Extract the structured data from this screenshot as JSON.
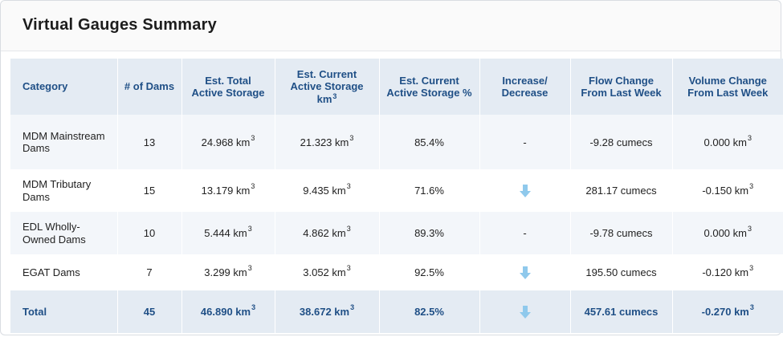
{
  "title": "Virtual Gauges Summary",
  "headers": {
    "category": "Category",
    "dams": "# of Dams",
    "total_storage": "Est. Total Active Storage",
    "current_storage": "Est. Current Active Storage km",
    "current_storage_sup": "3",
    "current_pct": "Est. Current Active Storage %",
    "trend": "Increase/ Decrease",
    "flow_change": "Flow Change From Last Week",
    "volume_change": "Volume Change From Last Week"
  },
  "unit_sup": "3",
  "colors": {
    "header_bg": "#e4ebf3",
    "header_text": "#1f4f86",
    "arrow": "#8fc9ec"
  },
  "rows": [
    {
      "category": "MDM Mainstream Dams",
      "dams": "13",
      "total": "24.968 km",
      "current": "21.323 km",
      "pct": "85.4%",
      "trend": "-",
      "trend_icon": "none",
      "flow": "-9.28 cumecs",
      "volume": "0.000 km"
    },
    {
      "category": "MDM Tributary Dams",
      "dams": "15",
      "total": "13.179 km",
      "current": "9.435 km",
      "pct": "71.6%",
      "trend": "",
      "trend_icon": "arrow-down-icon",
      "flow": "281.17 cumecs",
      "volume": "-0.150 km"
    },
    {
      "category": "EDL Wholly-Owned Dams",
      "dams": "10",
      "total": "5.444 km",
      "current": "4.862 km",
      "pct": "89.3%",
      "trend": "-",
      "trend_icon": "none",
      "flow": "-9.78 cumecs",
      "volume": "0.000 km"
    },
    {
      "category": "EGAT Dams",
      "dams": "7",
      "total": "3.299 km",
      "current": "3.052 km",
      "pct": "92.5%",
      "trend": "",
      "trend_icon": "arrow-down-icon",
      "flow": "195.50 cumecs",
      "volume": "-0.120 km"
    }
  ],
  "total": {
    "category": "Total",
    "dams": "45",
    "total": "46.890 km",
    "current": "38.672 km",
    "pct": "82.5%",
    "trend": "",
    "trend_icon": "arrow-down-icon",
    "flow": "457.61 cumecs",
    "volume": "-0.270 km"
  }
}
